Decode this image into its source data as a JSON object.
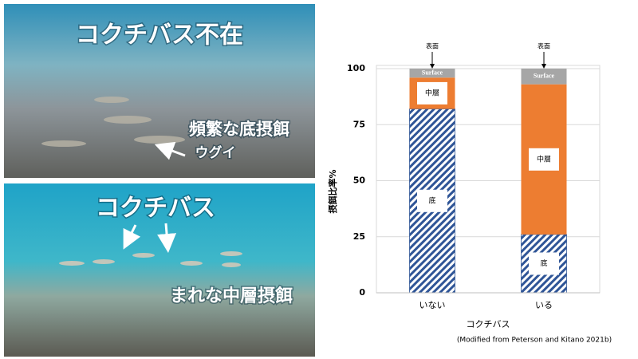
{
  "chart_data": {
    "type": "stacked-bar",
    "categories": [
      "いない",
      "いる"
    ],
    "series": [
      {
        "name": "底",
        "color": "#2f5597",
        "values": [
          82,
          26
        ]
      },
      {
        "name": "中層",
        "color": "#ed7d31",
        "values": [
          14,
          67
        ]
      },
      {
        "name": "Surface",
        "color": "#a6a6a6",
        "values": [
          4,
          7
        ]
      }
    ],
    "ylim": [
      0,
      100
    ],
    "yticks": [
      0,
      25,
      50,
      75,
      100
    ],
    "grid": true,
    "y_label": "摂餌比率%",
    "x_label": "コクチバス",
    "annotation": "表面",
    "source": "(Modified from Peterson and Kitano 2021b)"
  },
  "photo_panels": [
    {
      "title": "コクチバス不在",
      "caption": "頻繁な底摂餌",
      "label": "ウグイ"
    },
    {
      "title": "コクチバス",
      "caption": "まれな中層摂餌"
    }
  ]
}
